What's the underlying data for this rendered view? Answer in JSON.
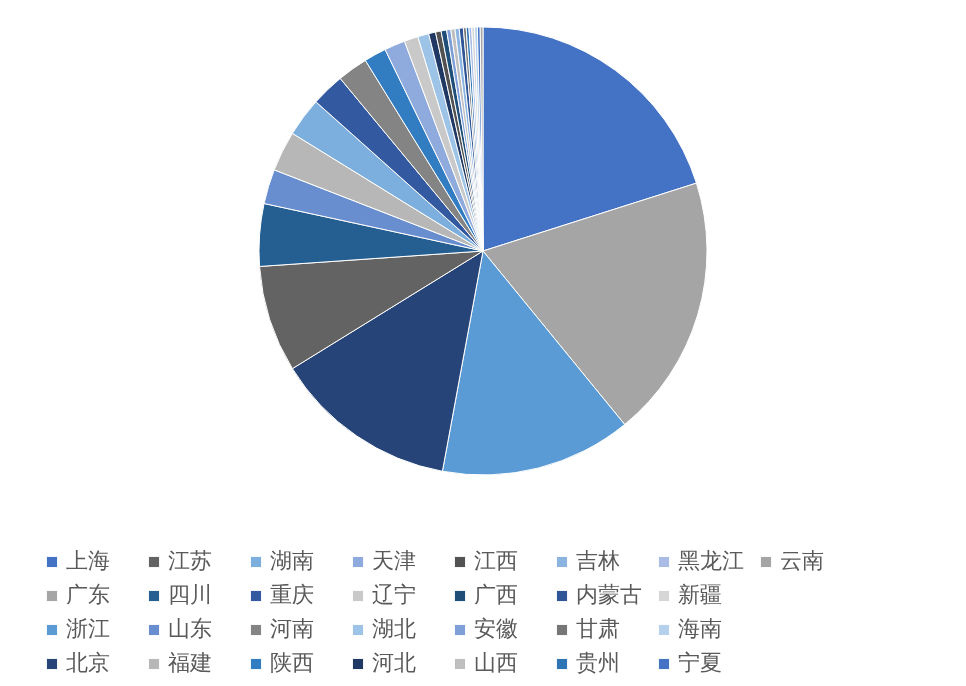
{
  "chart_data": {
    "type": "pie",
    "legend": "bottom",
    "categories": [
      "上海",
      "广东",
      "浙江",
      "北京",
      "江苏",
      "四川",
      "山东",
      "福建",
      "湖南",
      "重庆",
      "河南",
      "陕西",
      "天津",
      "辽宁",
      "湖北",
      "河北",
      "江西",
      "广西",
      "安徽",
      "山西",
      "吉林",
      "内蒙古",
      "甘肃",
      "贵州",
      "黑龙江",
      "新疆",
      "海南",
      "宁夏",
      "云南"
    ],
    "values": [
      20.1,
      19.0,
      13.8,
      13.3,
      7.7,
      4.5,
      2.5,
      2.9,
      2.8,
      2.4,
      2.2,
      1.6,
      1.5,
      1.0,
      0.8,
      0.5,
      0.4,
      0.4,
      0.3,
      0.3,
      0.3,
      0.3,
      0.2,
      0.2,
      0.2,
      0.2,
      0.2,
      0.2,
      0.2
    ],
    "colors": [
      "#4472c4",
      "#a5a5a5",
      "#5b9bd5",
      "#264478",
      "#636363",
      "#255e91",
      "#698ed0",
      "#b7b7b7",
      "#7cafdd",
      "#335aa1",
      "#848484",
      "#327dc2",
      "#8faadc",
      "#c9c9c9",
      "#9dc3e6",
      "#203864",
      "#525252",
      "#1f4e79",
      "#7f9fd8",
      "#bfbfbf",
      "#8cb4e0",
      "#2f5597",
      "#767676",
      "#2e75b6",
      "#a9bce6",
      "#d6d6d6",
      "#b4d0ec",
      "#4472c4",
      "#a5a5a5"
    ]
  }
}
